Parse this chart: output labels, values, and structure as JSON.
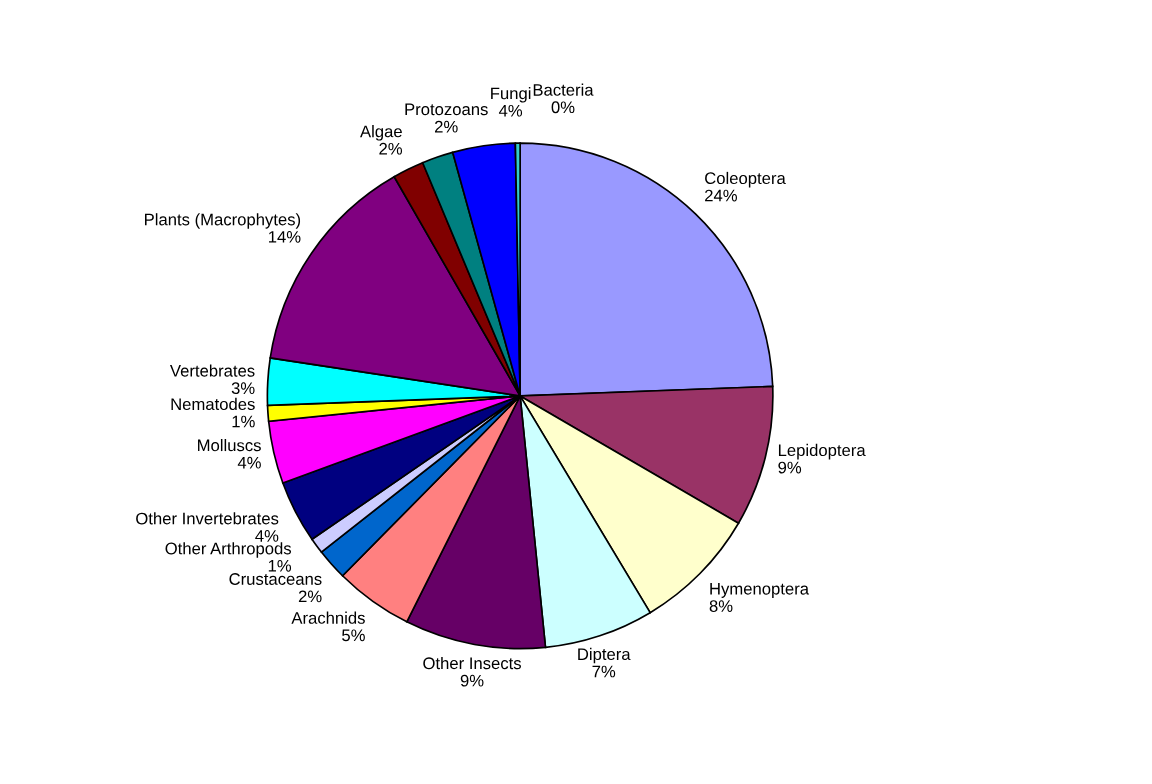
{
  "chart_data": {
    "type": "pie",
    "categories": [
      "Coleoptera",
      "Lepidoptera",
      "Hymenoptera",
      "Diptera",
      "Other Insects",
      "Arachnids",
      "Crustaceans",
      "Other Arthropods",
      "Other Invertebrates",
      "Molluscs",
      "Nematodes",
      "Vertebrates",
      "Plants (Macrophytes)",
      "Algae",
      "Protozoans",
      "Fungi",
      "Bacteria"
    ],
    "values": [
      24.4,
      9,
      8,
      7,
      9,
      5,
      2,
      1,
      4,
      4,
      1,
      3,
      14.3,
      2,
      2,
      4,
      0.3
    ],
    "value_labels": [
      "24%",
      "9%",
      "8%",
      "7%",
      "9%",
      "5%",
      "2%",
      "1%",
      "4%",
      "4%",
      "1%",
      "3%",
      "14%",
      "2%",
      "2%",
      "4%",
      "0%"
    ],
    "colors": [
      "#9999ff",
      "#993366",
      "#ffffcc",
      "#ccffff",
      "#660066",
      "#ff8080",
      "#0066cc",
      "#ccccff",
      "#000080",
      "#ff00ff",
      "#ffff00",
      "#00ffff",
      "#800080",
      "#800000",
      "#008080",
      "#0000ff",
      "#33cccc"
    ]
  }
}
